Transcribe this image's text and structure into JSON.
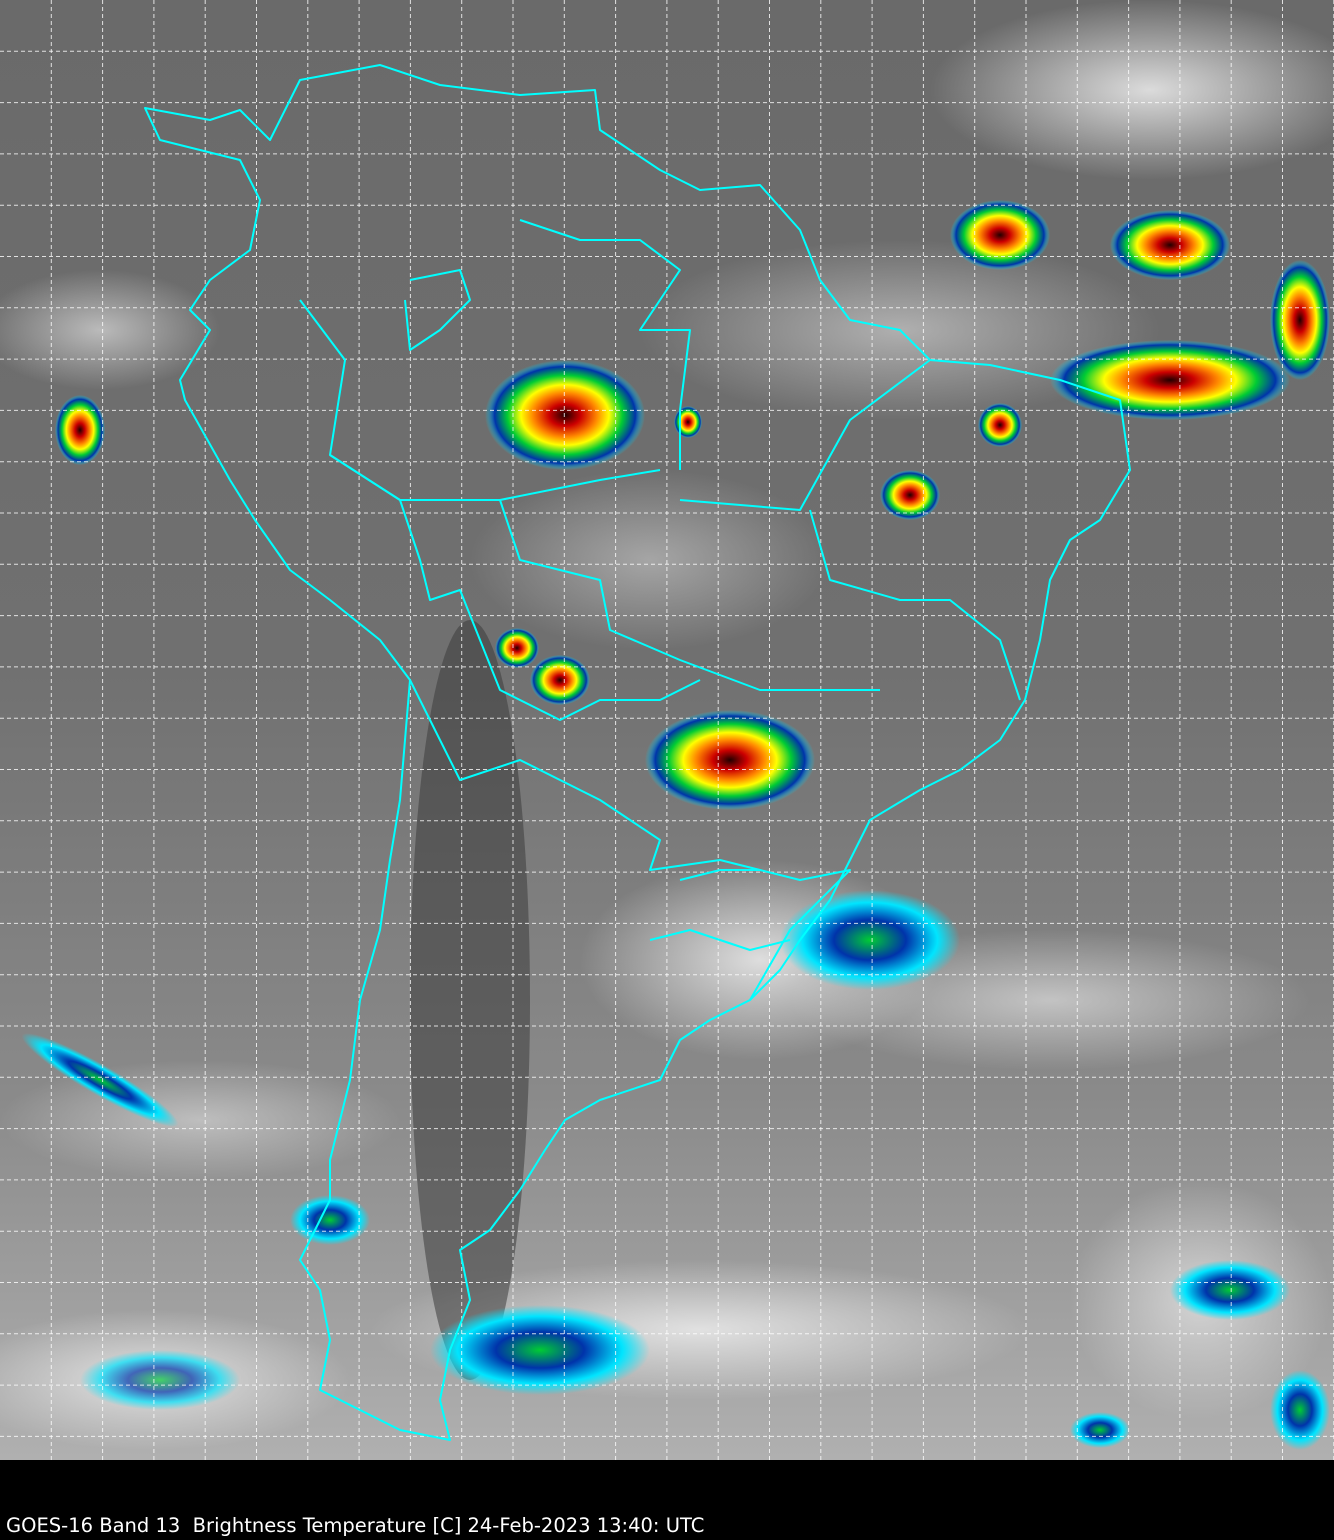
{
  "caption": "GOES-16 Band 13  Brightness Temperature [C] 24-Feb-2023 13:40: UTC",
  "map": {
    "region": "South America",
    "border_color": "#00ffff",
    "grid_color": "#ffffff",
    "grid_style": "dashed",
    "colormap": [
      "#ffffff",
      "#00e5ff",
      "#0033aa",
      "#00cc33",
      "#ffff00",
      "#ff6600",
      "#cc0000",
      "#220000"
    ]
  }
}
